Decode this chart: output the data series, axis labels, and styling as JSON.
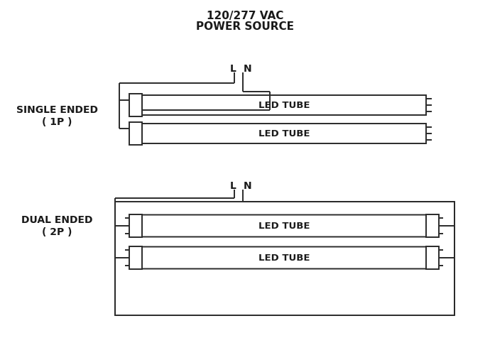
{
  "title_line1": "120/277 VAC",
  "title_line2": "POWER SOURCE",
  "label_single_1": "SINGLE ENDED",
  "label_single_2": "( 1P )",
  "label_dual_1": "DUAL ENDED",
  "label_dual_2": "( 2P )",
  "led_tube_label": "LED TUBE",
  "bg_color": "#ffffff",
  "line_color": "#2a2a2a",
  "text_color": "#1a1a1a",
  "lw": 1.4,
  "fig_width": 6.9,
  "fig_height": 4.77,
  "dpi": 100
}
